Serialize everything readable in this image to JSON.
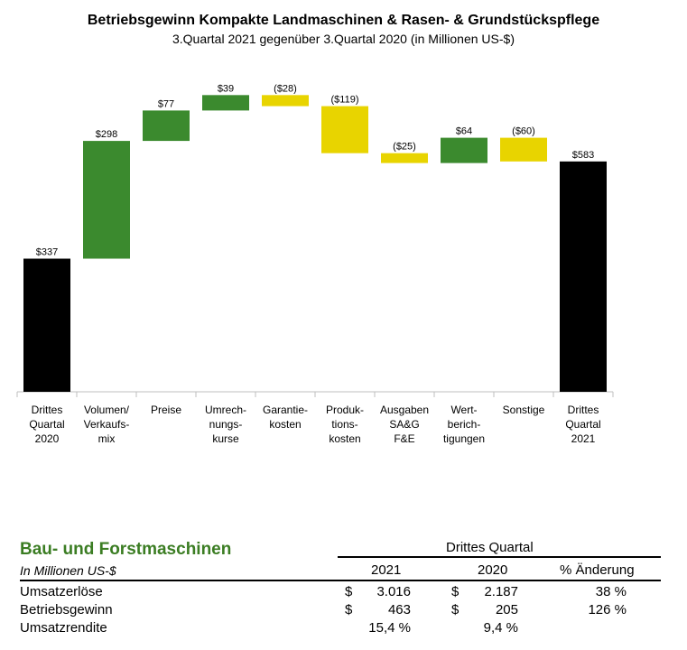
{
  "title": "Betriebsgewinn Kompakte Landmaschinen & Rasen- & Grundstückspflege",
  "subtitle": "3.Quartal 2021 gegenüber 3.Quartal 2020 (in Millionen US-$)",
  "colors": {
    "black": "#000000",
    "green": "#3b8a2e",
    "yellow": "#e8d400"
  },
  "chart_data": {
    "type": "bar",
    "subtype": "waterfall",
    "categories": [
      [
        "Drittes",
        "Quartal",
        "2020"
      ],
      [
        "Volumen/",
        "Verkaufs-",
        "mix"
      ],
      [
        "Preise"
      ],
      [
        "Umrech-",
        "nungs-",
        "kurse"
      ],
      [
        "Garantie-",
        "kosten"
      ],
      [
        "Produk-",
        "tions-",
        "kosten"
      ],
      [
        "Ausgaben",
        "SA&G",
        "F&E"
      ],
      [
        "Wert-",
        "berich-",
        "tigungen"
      ],
      [
        "Sonstige"
      ],
      [
        "Drittes",
        "Quartal",
        "2021"
      ]
    ],
    "values": [
      337,
      298,
      77,
      39,
      -28,
      -119,
      -25,
      64,
      -60,
      583
    ],
    "kinds": [
      "total",
      "increase",
      "increase",
      "increase",
      "decrease",
      "decrease",
      "decrease",
      "increase",
      "decrease",
      "total"
    ],
    "data_labels": [
      "$337",
      "$298",
      "$77",
      "$39",
      "($28)",
      "($119)",
      "($25)",
      "$64",
      "($60)",
      "$583"
    ],
    "ylim": [
      0,
      850
    ],
    "grid": false
  },
  "table": {
    "title": "Bau- und Forstmaschinen",
    "unit": "In Millionen US-$",
    "group_header": "Drittes Quartal",
    "columns": [
      "2021",
      "2020",
      "% Änderung"
    ],
    "rows": [
      {
        "label": "Umsatzerlöse",
        "cur1": "$",
        "v2021": "3.016",
        "cur2": "$",
        "v2020": "2.187",
        "change": "38 %"
      },
      {
        "label": "Betriebsgewinn",
        "cur1": "$",
        "v2021": "463",
        "cur2": "$",
        "v2020": "205",
        "change": "126 %"
      },
      {
        "label": "Umsatzrendite",
        "cur1": "",
        "v2021": "15,4 %",
        "cur2": "",
        "v2020": "9,4 %",
        "change": ""
      }
    ]
  }
}
